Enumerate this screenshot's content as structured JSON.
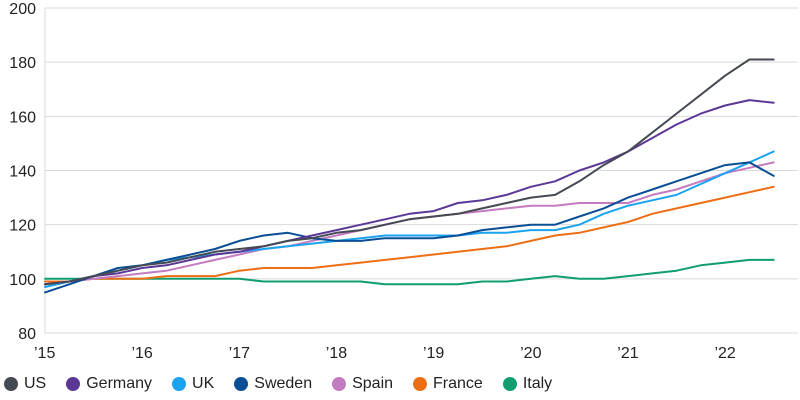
{
  "chart_data": {
    "type": "line",
    "title": "",
    "xlabel": "",
    "ylabel": "",
    "ylim": [
      80,
      200
    ],
    "yticks": [
      "80",
      "100",
      "120",
      "140",
      "160",
      "180",
      "200"
    ],
    "xticks": [
      {
        "label": "’15",
        "x": 2015.0
      },
      {
        "label": "’16",
        "x": 2016.0
      },
      {
        "label": "’17",
        "x": 2017.0
      },
      {
        "label": "’18",
        "x": 2018.0
      },
      {
        "label": "’19",
        "x": 2019.0
      },
      {
        "label": "’20",
        "x": 2020.0
      },
      {
        "label": "’21",
        "x": 2021.0
      },
      {
        "label": "’22",
        "x": 2022.0
      }
    ],
    "xlim": [
      2015.0,
      2022.75
    ],
    "grid": "horizontal",
    "legend_position": "bottom",
    "x": [
      2015.0,
      2015.25,
      2015.5,
      2015.75,
      2016.0,
      2016.25,
      2016.5,
      2016.75,
      2017.0,
      2017.25,
      2017.5,
      2017.75,
      2018.0,
      2018.25,
      2018.5,
      2018.75,
      2019.0,
      2019.25,
      2019.5,
      2019.75,
      2020.0,
      2020.25,
      2020.5,
      2020.75,
      2021.0,
      2021.25,
      2021.5,
      2021.75,
      2022.0,
      2022.25,
      2022.5
    ],
    "series": [
      {
        "name": "US",
        "color": "#454a52",
        "values": [
          98,
          99,
          101,
          103,
          105,
          106,
          108,
          110,
          111,
          112,
          114,
          115,
          117,
          118,
          120,
          122,
          123,
          124,
          126,
          128,
          130,
          131,
          136,
          142,
          147,
          154,
          161,
          168,
          175,
          181,
          181
        ]
      },
      {
        "name": "Germany",
        "color": "#5c3896",
        "values": [
          98,
          99,
          101,
          102,
          104,
          105,
          107,
          109,
          110,
          112,
          114,
          116,
          118,
          120,
          122,
          124,
          125,
          128,
          129,
          131,
          134,
          136,
          140,
          143,
          147,
          152,
          157,
          161,
          164,
          166,
          165
        ]
      },
      {
        "name": "UK",
        "color": "#1aa3ef",
        "values": [
          97,
          99,
          101,
          103,
          105,
          107,
          108,
          109,
          110,
          111,
          112,
          113,
          114,
          115,
          116,
          116,
          116,
          116,
          117,
          117,
          118,
          118,
          120,
          124,
          127,
          129,
          131,
          135,
          139,
          143,
          147
        ]
      },
      {
        "name": "Sweden",
        "color": "#0a4e95",
        "values": [
          95,
          98,
          101,
          104,
          105,
          107,
          109,
          111,
          114,
          116,
          117,
          115,
          114,
          114,
          115,
          115,
          115,
          116,
          118,
          119,
          120,
          120,
          123,
          126,
          130,
          133,
          136,
          139,
          142,
          143,
          138
        ]
      },
      {
        "name": "Spain",
        "color": "#c47bc0",
        "values": [
          98,
          99,
          100,
          101,
          102,
          103,
          105,
          107,
          109,
          111,
          112,
          114,
          116,
          118,
          120,
          122,
          123,
          124,
          125,
          126,
          127,
          127,
          128,
          128,
          128,
          131,
          133,
          136,
          139,
          141,
          143
        ]
      },
      {
        "name": "France",
        "color": "#ec6f15",
        "values": [
          99,
          99,
          100,
          100,
          100,
          101,
          101,
          101,
          103,
          104,
          104,
          104,
          105,
          106,
          107,
          108,
          109,
          110,
          111,
          112,
          114,
          116,
          117,
          119,
          121,
          124,
          126,
          128,
          130,
          132,
          134
        ]
      },
      {
        "name": "Italy",
        "color": "#119d72",
        "values": [
          100,
          100,
          100,
          100,
          100,
          100,
          100,
          100,
          100,
          99,
          99,
          99,
          99,
          99,
          98,
          98,
          98,
          98,
          99,
          99,
          100,
          101,
          100,
          100,
          101,
          102,
          103,
          105,
          106,
          107,
          107
        ]
      }
    ]
  }
}
